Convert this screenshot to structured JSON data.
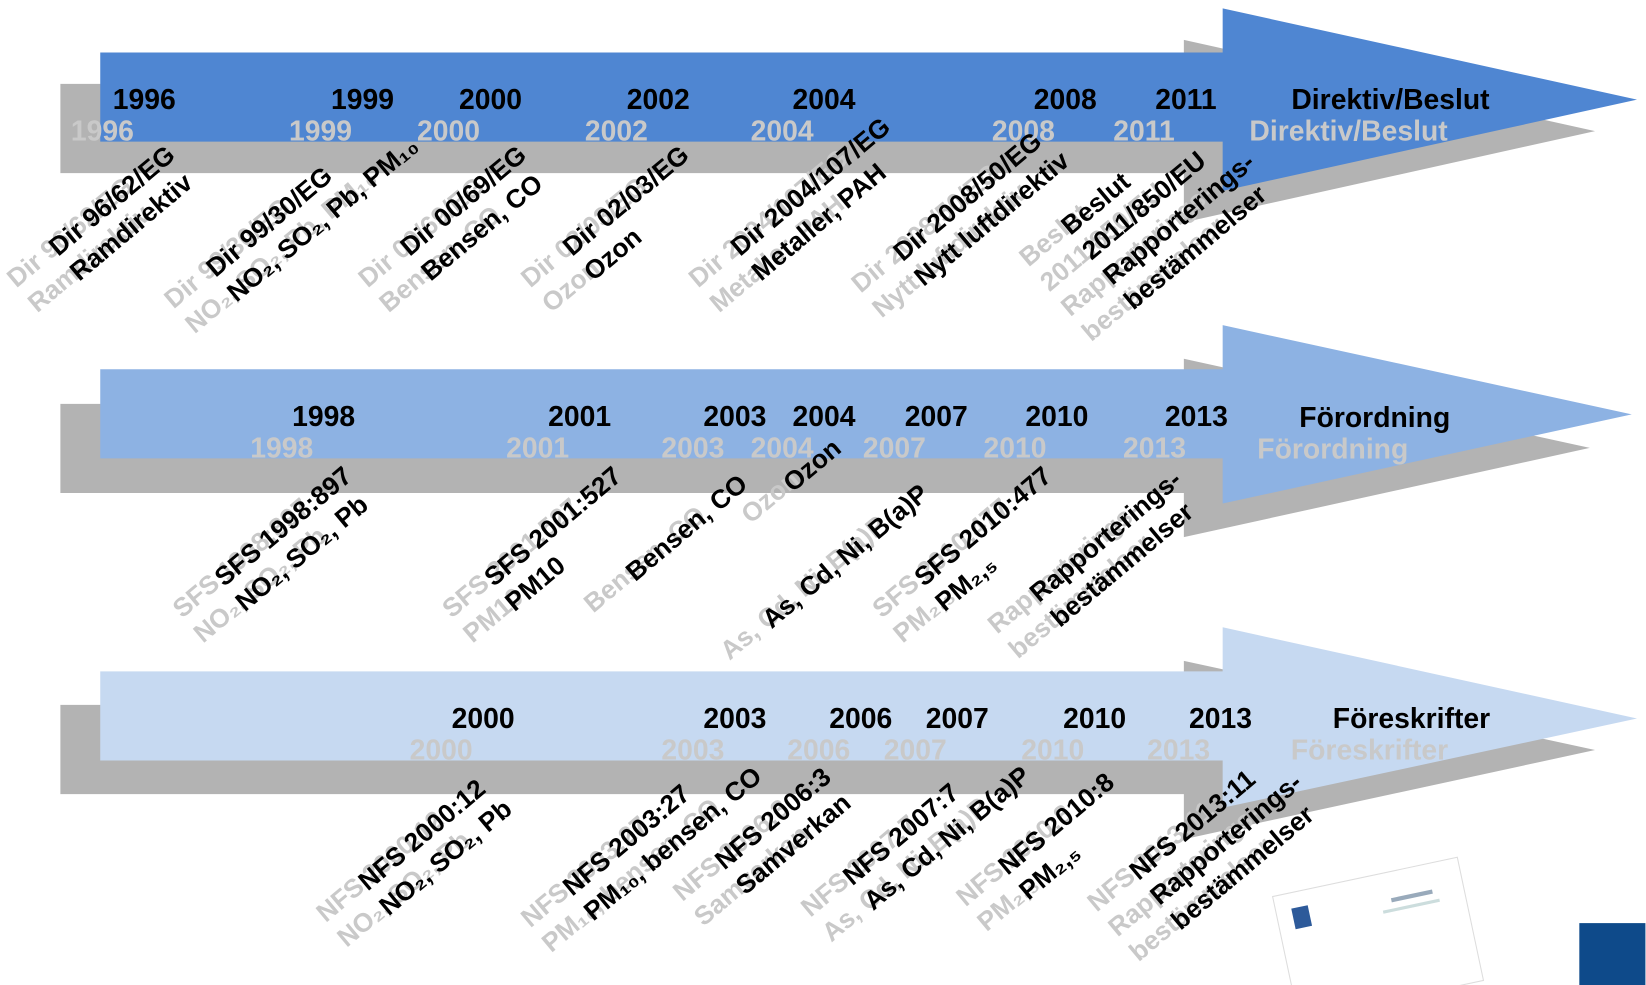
{
  "rows": [
    {
      "title": "Direktiv/Beslut",
      "items": [
        {
          "year": "1996",
          "lines": [
            "Dir 96/62/EG",
            "Ramdirektiv"
          ]
        },
        {
          "year": "1999",
          "lines": [
            "Dir 99/30/EG",
            "NO₂, SO₂, Pb, PM₁₀"
          ]
        },
        {
          "year": "2000",
          "lines": [
            "Dir 00/69/EG",
            "Bensen, CO"
          ]
        },
        {
          "year": "2002",
          "lines": [
            "Dir 02/03/EG",
            "Ozon"
          ]
        },
        {
          "year": "2004",
          "lines": [
            "Dir 2004/107/EG",
            "Metaller, PAH"
          ]
        },
        {
          "year": "2008",
          "lines": [
            "Dir 2008/50/EG",
            "Nytt luftdirektiv"
          ]
        },
        {
          "year": "2011",
          "lines": [
            "Beslut",
            "2011/850/EU",
            "Rapporterings-",
            "bestämmelser"
          ]
        }
      ]
    },
    {
      "title": "Förordning",
      "items": [
        {
          "year": "1998",
          "lines": [
            "SFS 1998:897",
            "NO₂, SO₂, Pb"
          ]
        },
        {
          "year": "2001",
          "lines": [
            "SFS 2001:527",
            "PM10"
          ]
        },
        {
          "year": "2003",
          "lines": [
            "Bensen, CO"
          ]
        },
        {
          "year": "2004",
          "lines": [
            "Ozon"
          ]
        },
        {
          "year": "2007",
          "lines": [
            "As, Cd, Ni, B(a)P"
          ]
        },
        {
          "year": "2010",
          "lines": [
            "SFS 2010:477",
            "PM₂,₅"
          ]
        },
        {
          "year": "2013",
          "lines": [
            "Rapporterings-",
            "bestämmelser"
          ]
        }
      ]
    },
    {
      "title": "Föreskrifter",
      "items": [
        {
          "year": "2000",
          "lines": [
            "NFS 2000:12",
            "NO₂, SO₂, Pb"
          ]
        },
        {
          "year": "2003",
          "lines": [
            "NFS 2003:27",
            "PM₁₀, bensen, CO"
          ]
        },
        {
          "year": "2006",
          "lines": [
            "NFS 2006:3",
            "Samverkan"
          ]
        },
        {
          "year": "2007",
          "lines": [
            "NFS 2007:7",
            "As, Cd, Ni, B(a)P"
          ]
        },
        {
          "year": "2010",
          "lines": [
            "NFS 2010:8",
            "PM₂,₅"
          ]
        },
        {
          "year": "2013",
          "lines": [
            "NFS 2013:11",
            "Rapporterings-",
            "bestämmelser"
          ]
        }
      ]
    }
  ]
}
